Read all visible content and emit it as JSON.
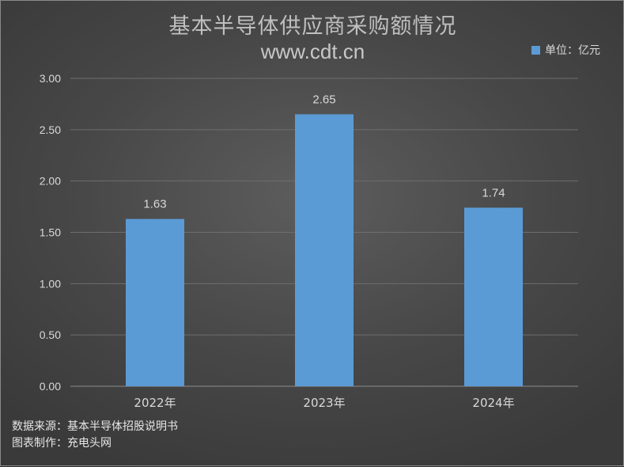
{
  "chart_data": {
    "type": "bar",
    "title": "基本半导体供应商采购额情况",
    "subtitle": "www.cdt.cn",
    "legend_label": "单位：亿元",
    "legend_position": "top-right",
    "categories": [
      "2022年",
      "2023年",
      "2024年"
    ],
    "values": [
      1.63,
      2.65,
      1.74
    ],
    "value_labels": [
      "1.63",
      "2.65",
      "1.74"
    ],
    "ylim": [
      0,
      3
    ],
    "yticks": [
      "0.00",
      "0.50",
      "1.00",
      "1.50",
      "2.00",
      "2.50",
      "3.00"
    ],
    "ytick_values": [
      0,
      0.5,
      1,
      1.5,
      2,
      2.5,
      3
    ],
    "grid": true,
    "bar_color": "#5b9bd5",
    "xlabel": "",
    "ylabel": ""
  },
  "footer": {
    "source": "数据来源：基本半导体招股说明书",
    "maker": "图表制作：充电头网"
  }
}
